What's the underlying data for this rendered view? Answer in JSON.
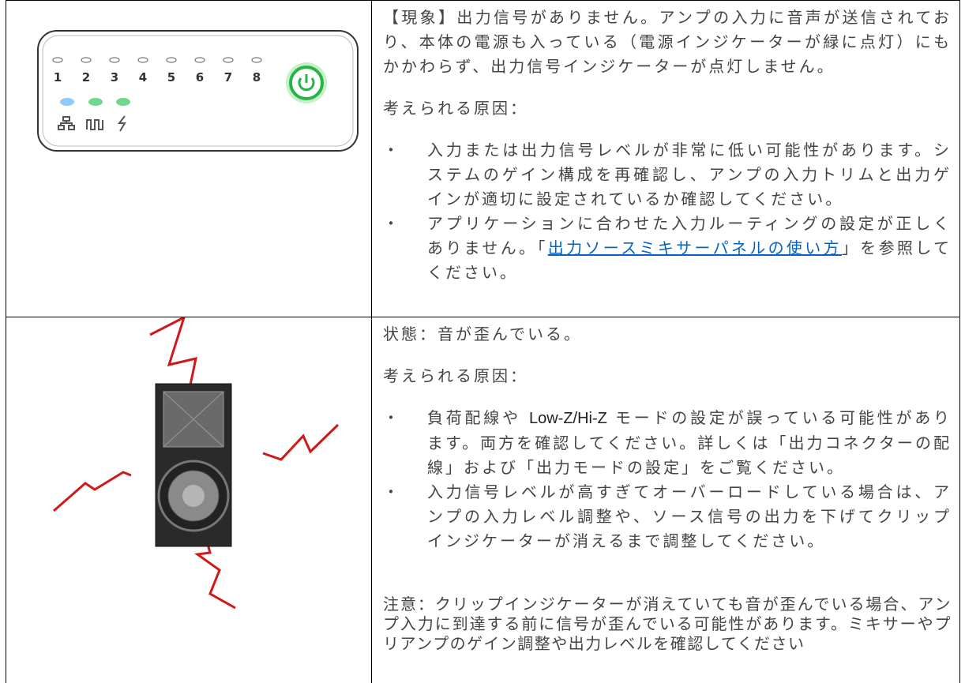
{
  "device_panel": {
    "numbers": [
      "1",
      "2",
      "3",
      "4",
      "5",
      "6",
      "7",
      "8"
    ]
  },
  "row1": {
    "symptom": "【現象】出力信号がありません。アンプの入力に音声が送信されており、本体の電源も入っている（電源インジケーターが緑に点灯）にもかかわらず、出力信号インジケーターが点灯しません。",
    "causes_heading": "考えられる原因：",
    "bullets": [
      {
        "text": "入力または出力信号レベルが非常に低い可能性があります。システムのゲイン構成を再確認し、アンプの入力トリムと出力ゲインが適切に設定されているか確認してください。"
      },
      {
        "before": "アプリケーションに合わせた入力ルーティングの設定が正しくありません。「",
        "link": "出力ソースミキサーパネルの使い方",
        "after": "」を参照してください。"
      }
    ]
  },
  "row2": {
    "symptom": "状態：音が歪んでいる。",
    "causes_heading": "考えられる原因：",
    "bullets": [
      {
        "before": "負荷配線や ",
        "emphasis": "Low-Z/Hi-Z",
        "after": " モードの設定が誤っている可能性があります。両方を確認してください。詳しくは「出力コネクターの配線」および「出力モードの設定」をご覧ください。"
      },
      {
        "text": "入力信号レベルが高すぎてオーバーロードしている場合は、アンプの入力レベル調整や、ソース信号の出力を下げてクリップインジケーターが消えるまで調整してください。"
      }
    ],
    "note": "注意：クリップインジケーターが消えていても音が歪んでいる場合、アンプ入力に到達する前に信号が歪んでいる可能性があります。ミキサーやプリアンプのゲイン調整や出力レベルを確認してください"
  }
}
